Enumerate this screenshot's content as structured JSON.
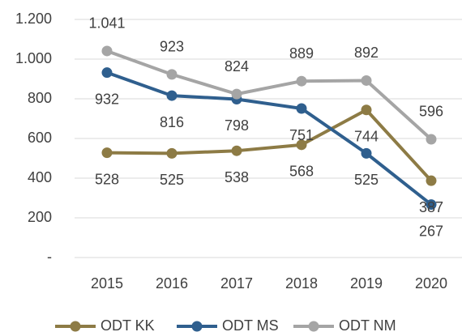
{
  "chart_data": {
    "type": "line",
    "categories": [
      "2015",
      "2016",
      "2017",
      "2018",
      "2019",
      "2020"
    ],
    "series": [
      {
        "name": "ODT KK",
        "color": "#8d7b45",
        "values": [
          528,
          525,
          538,
          568,
          744,
          387
        ]
      },
      {
        "name": "ODT MS",
        "color": "#2f5f8e",
        "values": [
          932,
          816,
          798,
          751,
          525,
          267
        ]
      },
      {
        "name": "ODT NM",
        "color": "#a5a5a5",
        "values": [
          1041,
          923,
          824,
          889,
          892,
          596
        ],
        "value_labels": [
          "1.041",
          "923",
          "824",
          "889",
          "892",
          "596"
        ]
      }
    ],
    "ylim": [
      0,
      1200
    ],
    "yticks": [
      {
        "value": 0,
        "label": "-"
      },
      200,
      400,
      600,
      800,
      {
        "value": 1000,
        "label": "1.000"
      },
      {
        "value": 1200,
        "label": "1.200"
      }
    ],
    "grid": true,
    "legend": "bottom"
  }
}
